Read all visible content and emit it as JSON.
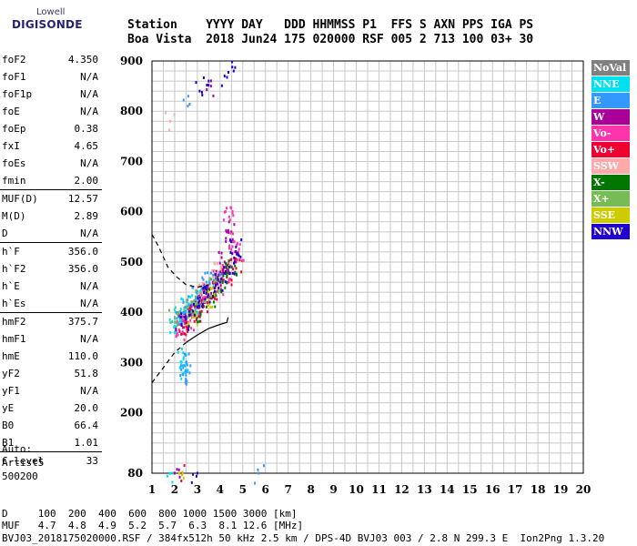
{
  "logo": {
    "line1": "Lowell",
    "line2": "DIGISONDE"
  },
  "header": {
    "line1": "Station    YYYY DAY   DDD HHMMSS P1  FFS S AXN PPS IGA PS",
    "line2": "Boa Vista  2018 Jun24 175 020000 RSF 005 2 713 100 03+ 30"
  },
  "params": [
    {
      "label": "foF2",
      "value": "4.350"
    },
    {
      "label": "foF1",
      "value": "N/A"
    },
    {
      "label": "foF1p",
      "value": "N/A"
    },
    {
      "label": "foE",
      "value": "N/A"
    },
    {
      "label": "foEp",
      "value": "0.38"
    },
    {
      "label": "fxI",
      "value": "4.65"
    },
    {
      "label": "foEs",
      "value": "N/A"
    },
    {
      "label": "fmin",
      "value": "2.00"
    },
    {
      "label": "MUF(D)",
      "value": "12.57"
    },
    {
      "label": "M(D)",
      "value": "2.89"
    },
    {
      "label": "D",
      "value": "N/A"
    },
    {
      "label": "h`F",
      "value": "356.0"
    },
    {
      "label": "h`F2",
      "value": "356.0"
    },
    {
      "label": "h`E",
      "value": "N/A"
    },
    {
      "label": "h`Es",
      "value": "N/A"
    },
    {
      "label": "hmF2",
      "value": "375.7"
    },
    {
      "label": "hmF1",
      "value": "N/A"
    },
    {
      "label": "hmE",
      "value": "110.0"
    },
    {
      "label": "yF2",
      "value": "51.8"
    },
    {
      "label": "yF1",
      "value": "N/A"
    },
    {
      "label": "yE",
      "value": "20.0"
    },
    {
      "label": "B0",
      "value": "66.4"
    },
    {
      "label": "B1",
      "value": "1.01"
    },
    {
      "label": "C-level",
      "value": "33"
    }
  ],
  "auto": {
    "line1": "Auto:",
    "line2": "Artist5",
    "line3": "500200"
  },
  "legend": [
    {
      "label": "NoVal",
      "color": "#808080"
    },
    {
      "label": "NNE",
      "color": "#00e0f0"
    },
    {
      "label": "E",
      "color": "#3399ff"
    },
    {
      "label": "W",
      "color": "#aa0099"
    },
    {
      "label": "Vo-",
      "color": "#ff33aa"
    },
    {
      "label": "Vo+",
      "color": "#ee0033"
    },
    {
      "label": "SSW",
      "color": "#ffaaaa"
    },
    {
      "label": "X-",
      "color": "#007700"
    },
    {
      "label": "X+",
      "color": "#77bb55"
    },
    {
      "label": "SSE",
      "color": "#cccc00"
    },
    {
      "label": "NNW",
      "color": "#2200cc"
    }
  ],
  "footer": {
    "line1": "D     100  200  400  600  800 1000 1500 3000 [km]",
    "line2": "MUF   4.7  4.8  4.9  5.2  5.7  6.3  8.1 12.6 [MHz]",
    "line3": "BVJ03_2018175020000.RSF / 384fx512h 50 kHz 2.5 km / DPS-4D BVJ03 003 / 2.8 N 299.3 E  Ion2Png 1.3.20"
  },
  "chart_data": {
    "type": "scatter",
    "title": "",
    "xlabel": "",
    "ylabel": "",
    "xlim": [
      1,
      20
    ],
    "ylim": [
      80,
      900
    ],
    "x_ticks": [
      1,
      2,
      3,
      4,
      5,
      6,
      7,
      8,
      9,
      10,
      11,
      12,
      13,
      14,
      15,
      16,
      17,
      18,
      19,
      20
    ],
    "y_ticks": [
      80,
      200,
      300,
      400,
      500,
      600,
      700,
      800,
      900
    ],
    "grid": true,
    "series": [
      {
        "name": "NNE",
        "color": "#00e0f0",
        "points": [
          [
            2.0,
            370
          ],
          [
            2.2,
            390
          ],
          [
            2.5,
            410
          ],
          [
            2.8,
            420
          ],
          [
            3.0,
            400
          ],
          [
            3.3,
            430
          ],
          [
            1.9,
            80
          ],
          [
            2.4,
            310
          ],
          [
            2.5,
            285
          ]
        ]
      },
      {
        "name": "E",
        "color": "#3399ff",
        "points": [
          [
            2.1,
            380
          ],
          [
            2.4,
            400
          ],
          [
            2.7,
            415
          ],
          [
            3.0,
            440
          ],
          [
            3.4,
            460
          ],
          [
            3.8,
            470
          ],
          [
            2.5,
            300
          ],
          [
            2.5,
            275
          ],
          [
            2.6,
            830
          ],
          [
            5.7,
            80
          ]
        ]
      },
      {
        "name": "W",
        "color": "#aa0099",
        "points": [
          [
            2.3,
            375
          ],
          [
            2.7,
            395
          ],
          [
            3.1,
            420
          ],
          [
            3.5,
            445
          ],
          [
            3.9,
            470
          ],
          [
            4.2,
            500
          ],
          [
            4.5,
            560
          ],
          [
            2.0,
            80
          ],
          [
            3.6,
            850
          ]
        ]
      },
      {
        "name": "Vo-",
        "color": "#ff33aa",
        "points": [
          [
            2.2,
            365
          ],
          [
            2.6,
            380
          ],
          [
            3.0,
            410
          ],
          [
            3.4,
            430
          ],
          [
            3.9,
            455
          ],
          [
            4.3,
            480
          ],
          [
            4.6,
            540
          ],
          [
            4.8,
            520
          ],
          [
            4.4,
            590
          ]
        ]
      },
      {
        "name": "Vo+",
        "color": "#ee0033",
        "points": [
          [
            2.4,
            370
          ],
          [
            2.9,
            395
          ],
          [
            3.3,
            420
          ],
          [
            3.8,
            440
          ],
          [
            4.3,
            470
          ],
          [
            4.7,
            500
          ],
          [
            2.2,
            80
          ]
        ]
      },
      {
        "name": "SSW",
        "color": "#ffaaaa",
        "points": [
          [
            1.8,
            780
          ],
          [
            3.2,
            440
          ],
          [
            3.9,
            480
          ]
        ]
      },
      {
        "name": "X-",
        "color": "#007700",
        "points": [
          [
            2.9,
            400
          ],
          [
            3.6,
            430
          ],
          [
            4.1,
            460
          ],
          [
            4.5,
            490
          ]
        ]
      },
      {
        "name": "X+",
        "color": "#77bb55",
        "points": [
          [
            2.0,
            390
          ],
          [
            2.6,
            410
          ],
          [
            3.1,
            430
          ],
          [
            3.7,
            450
          ]
        ]
      },
      {
        "name": "SSE",
        "color": "#cccc00",
        "points": [
          [
            2.8,
            390
          ],
          [
            3.5,
            430
          ],
          [
            2.2,
            80
          ]
        ]
      },
      {
        "name": "NNW",
        "color": "#2200cc",
        "points": [
          [
            2.5,
            385
          ],
          [
            3.0,
            410
          ],
          [
            3.5,
            435
          ],
          [
            4.0,
            460
          ],
          [
            4.4,
            490
          ],
          [
            4.7,
            530
          ],
          [
            3.1,
            840
          ],
          [
            3.5,
            860
          ],
          [
            4.2,
            870
          ],
          [
            4.6,
            880
          ],
          [
            3.0,
            80
          ]
        ]
      }
    ],
    "trace_curves": [
      {
        "style": "dashed",
        "points": [
          [
            1.0,
            260
          ],
          [
            1.5,
            290
          ],
          [
            2.0,
            320
          ],
          [
            2.5,
            340
          ]
        ]
      },
      {
        "style": "solid",
        "points": [
          [
            2.5,
            340
          ],
          [
            3.0,
            355
          ],
          [
            3.5,
            368
          ],
          [
            4.0,
            376
          ],
          [
            4.3,
            380
          ],
          [
            4.35,
            390
          ]
        ]
      },
      {
        "style": "dashed",
        "points": [
          [
            1.0,
            555
          ],
          [
            1.3,
            530
          ],
          [
            1.7,
            490
          ],
          [
            2.1,
            470
          ],
          [
            2.5,
            455
          ],
          [
            3.0,
            450
          ],
          [
            3.5,
            455
          ]
        ]
      }
    ]
  }
}
